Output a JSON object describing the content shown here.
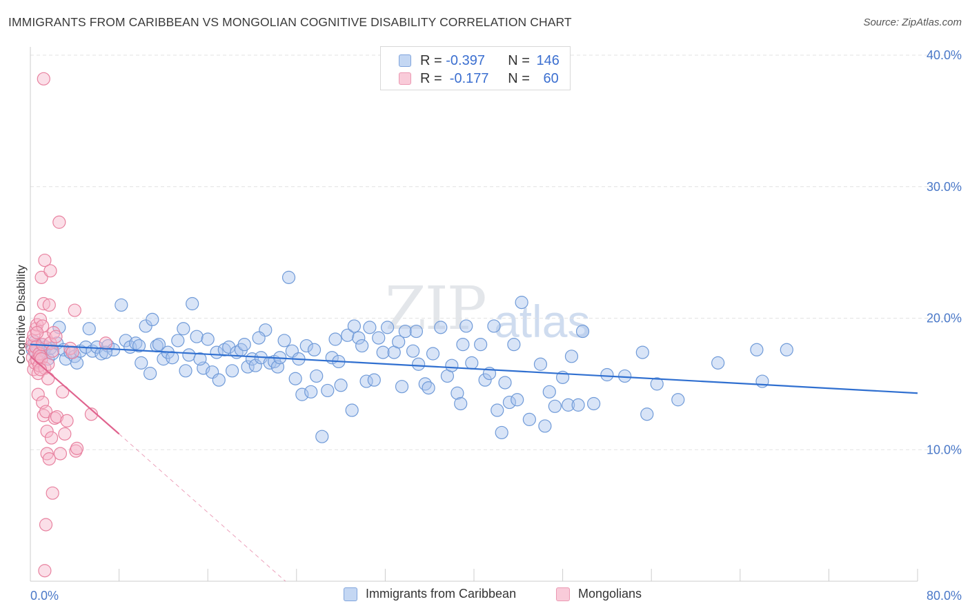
{
  "title": "IMMIGRANTS FROM CARIBBEAN VS MONGOLIAN COGNITIVE DISABILITY CORRELATION CHART",
  "source": "Source: ZipAtlas.com",
  "watermark": {
    "zip": "ZIP",
    "atlas": "atlas"
  },
  "legend": {
    "rows": [
      {
        "r_label": "R = ",
        "r_value": "-0.397",
        "n_label": "N = ",
        "n_value": "146",
        "color": "#a9c4ee"
      },
      {
        "r_label": "R = ",
        "r_value": " -0.177",
        "n_label": "N = ",
        "n_value": "60",
        "color": "#f7b9cc"
      }
    ]
  },
  "bottom_legend": {
    "series1": "Immigrants from Caribbean",
    "series2": "Mongolians"
  },
  "chart_data": {
    "type": "scatter",
    "title": "IMMIGRANTS FROM CARIBBEAN VS MONGOLIAN COGNITIVE DISABILITY CORRELATION CHART",
    "xlabel": "",
    "ylabel": "Cognitive Disability",
    "xlim": [
      0,
      80
    ],
    "ylim": [
      0,
      40
    ],
    "x_tick_labels": [
      "0.0%",
      "80.0%"
    ],
    "y_ticks": [
      10,
      20,
      30,
      40
    ],
    "y_tick_labels": [
      "10.0%",
      "20.0%",
      "30.0%",
      "40.0%"
    ],
    "grid": true,
    "colors": {
      "blue_fill": "#a9c4ee",
      "blue_stroke": "#6f9ad8",
      "blue_line": "#2f6fd0",
      "pink_fill": "#f7b9cc",
      "pink_stroke": "#e8819f",
      "pink_line": "#e0638e"
    },
    "series": [
      {
        "name": "Immigrants from Caribbean",
        "trend": {
          "x0": 0,
          "y0": 18.0,
          "x1": 80,
          "y1": 14.3
        },
        "points": [
          [
            0.2,
            17.6
          ],
          [
            0.4,
            18.2
          ],
          [
            0.5,
            17.4
          ],
          [
            0.6,
            17.9
          ],
          [
            0.8,
            17.2
          ],
          [
            1.0,
            18.0
          ],
          [
            1.2,
            17.5
          ],
          [
            1.4,
            17.8
          ],
          [
            1.6,
            16.9
          ],
          [
            1.8,
            17.7
          ],
          [
            2.0,
            17.3
          ],
          [
            2.4,
            18.1
          ],
          [
            2.6,
            19.3
          ],
          [
            3.0,
            17.6
          ],
          [
            3.2,
            16.9
          ],
          [
            3.6,
            17.4
          ],
          [
            4.0,
            17.1
          ],
          [
            4.2,
            16.6
          ],
          [
            4.5,
            17.5
          ],
          [
            5.0,
            17.8
          ],
          [
            5.3,
            19.2
          ],
          [
            5.6,
            17.5
          ],
          [
            6.0,
            17.8
          ],
          [
            6.4,
            17.3
          ],
          [
            7.0,
            17.9
          ],
          [
            7.5,
            17.6
          ],
          [
            8.2,
            21.0
          ],
          [
            8.6,
            18.3
          ],
          [
            9.0,
            17.8
          ],
          [
            9.5,
            18.1
          ],
          [
            10.0,
            16.6
          ],
          [
            10.4,
            19.4
          ],
          [
            10.8,
            15.8
          ],
          [
            11.0,
            19.9
          ],
          [
            11.4,
            17.9
          ],
          [
            11.6,
            18.0
          ],
          [
            12.0,
            16.9
          ],
          [
            12.4,
            17.4
          ],
          [
            12.8,
            17.0
          ],
          [
            13.3,
            18.3
          ],
          [
            13.8,
            19.2
          ],
          [
            14.0,
            16.0
          ],
          [
            14.3,
            17.2
          ],
          [
            14.6,
            21.1
          ],
          [
            15.0,
            18.6
          ],
          [
            15.6,
            16.2
          ],
          [
            16.0,
            18.4
          ],
          [
            16.4,
            15.9
          ],
          [
            16.8,
            17.4
          ],
          [
            17.0,
            15.3
          ],
          [
            17.5,
            17.6
          ],
          [
            17.9,
            17.8
          ],
          [
            18.2,
            16.0
          ],
          [
            18.6,
            17.4
          ],
          [
            19.0,
            17.6
          ],
          [
            19.3,
            18.0
          ],
          [
            19.6,
            16.3
          ],
          [
            20.0,
            16.9
          ],
          [
            20.3,
            16.4
          ],
          [
            20.8,
            17.0
          ],
          [
            21.2,
            19.1
          ],
          [
            21.6,
            16.6
          ],
          [
            22.0,
            16.7
          ],
          [
            22.3,
            16.3
          ],
          [
            22.5,
            17.0
          ],
          [
            22.9,
            18.3
          ],
          [
            23.3,
            23.1
          ],
          [
            23.6,
            17.5
          ],
          [
            23.9,
            15.4
          ],
          [
            24.2,
            16.9
          ],
          [
            24.5,
            14.2
          ],
          [
            24.9,
            17.9
          ],
          [
            25.3,
            14.4
          ],
          [
            25.6,
            17.6
          ],
          [
            25.8,
            15.6
          ],
          [
            26.3,
            11.0
          ],
          [
            26.8,
            14.5
          ],
          [
            27.2,
            17.0
          ],
          [
            27.5,
            18.4
          ],
          [
            27.8,
            16.7
          ],
          [
            28.0,
            14.9
          ],
          [
            28.6,
            18.7
          ],
          [
            29.0,
            13.0
          ],
          [
            29.2,
            19.4
          ],
          [
            29.6,
            18.5
          ],
          [
            29.9,
            17.9
          ],
          [
            30.3,
            15.2
          ],
          [
            30.6,
            19.3
          ],
          [
            31.0,
            15.3
          ],
          [
            31.4,
            18.5
          ],
          [
            31.8,
            17.4
          ],
          [
            32.2,
            19.3
          ],
          [
            32.8,
            17.4
          ],
          [
            33.2,
            18.2
          ],
          [
            33.5,
            14.8
          ],
          [
            33.8,
            19.0
          ],
          [
            34.5,
            17.5
          ],
          [
            34.8,
            19.0
          ],
          [
            35.0,
            16.5
          ],
          [
            35.6,
            15.0
          ],
          [
            35.9,
            14.7
          ],
          [
            36.3,
            17.3
          ],
          [
            37.0,
            19.3
          ],
          [
            37.6,
            15.6
          ],
          [
            38.0,
            16.4
          ],
          [
            38.5,
            14.3
          ],
          [
            38.8,
            13.5
          ],
          [
            39.0,
            18.0
          ],
          [
            39.3,
            19.4
          ],
          [
            39.8,
            16.6
          ],
          [
            40.6,
            18.0
          ],
          [
            41.0,
            15.3
          ],
          [
            41.4,
            15.8
          ],
          [
            41.8,
            19.4
          ],
          [
            42.1,
            13.0
          ],
          [
            42.5,
            11.3
          ],
          [
            42.8,
            15.1
          ],
          [
            43.2,
            13.6
          ],
          [
            43.6,
            18.0
          ],
          [
            43.9,
            13.8
          ],
          [
            44.3,
            21.2
          ],
          [
            45.0,
            12.3
          ],
          [
            46.0,
            16.5
          ],
          [
            46.4,
            11.8
          ],
          [
            46.8,
            14.4
          ],
          [
            47.3,
            13.3
          ],
          [
            48.0,
            15.5
          ],
          [
            48.5,
            13.4
          ],
          [
            48.8,
            17.1
          ],
          [
            49.8,
            19.0
          ],
          [
            49.4,
            13.4
          ],
          [
            50.8,
            13.5
          ],
          [
            52.0,
            15.7
          ],
          [
            53.6,
            15.6
          ],
          [
            55.2,
            17.4
          ],
          [
            55.6,
            12.7
          ],
          [
            56.5,
            15.0
          ],
          [
            58.4,
            13.8
          ],
          [
            62.0,
            16.6
          ],
          [
            65.5,
            17.6
          ],
          [
            66.0,
            15.2
          ],
          [
            68.2,
            17.6
          ],
          [
            6.8,
            17.4
          ],
          [
            9.8,
            17.9
          ],
          [
            15.3,
            16.9
          ],
          [
            20.6,
            18.5
          ]
        ]
      },
      {
        "name": "Mongolians",
        "trend": {
          "x0": 0,
          "y0": 17.1,
          "x1": 8.0,
          "y1": 11.2,
          "dash_x1": 23.0,
          "dash_y1": 0.0
        },
        "points": [
          [
            0.1,
            17.9
          ],
          [
            0.2,
            18.3
          ],
          [
            0.2,
            17.0
          ],
          [
            0.3,
            16.1
          ],
          [
            0.3,
            18.7
          ],
          [
            0.4,
            16.6
          ],
          [
            0.4,
            17.5
          ],
          [
            0.5,
            17.8
          ],
          [
            0.5,
            19.2
          ],
          [
            0.6,
            16.8
          ],
          [
            0.6,
            19.5
          ],
          [
            0.7,
            14.2
          ],
          [
            0.7,
            15.8
          ],
          [
            0.8,
            16.4
          ],
          [
            0.8,
            17.3
          ],
          [
            0.9,
            17.1
          ],
          [
            0.9,
            19.9
          ],
          [
            1.0,
            23.1
          ],
          [
            1.0,
            16.9
          ],
          [
            1.1,
            18.0
          ],
          [
            1.1,
            13.6
          ],
          [
            1.2,
            12.6
          ],
          [
            1.2,
            21.1
          ],
          [
            1.2,
            38.2
          ],
          [
            1.3,
            24.4
          ],
          [
            1.3,
            16.2
          ],
          [
            1.4,
            18.5
          ],
          [
            1.4,
            12.9
          ],
          [
            1.5,
            11.4
          ],
          [
            1.5,
            9.7
          ],
          [
            1.6,
            16.5
          ],
          [
            1.6,
            15.4
          ],
          [
            1.7,
            9.3
          ],
          [
            1.7,
            21.0
          ],
          [
            1.8,
            23.6
          ],
          [
            1.8,
            18.1
          ],
          [
            1.9,
            10.9
          ],
          [
            2.0,
            6.7
          ],
          [
            2.0,
            17.5
          ],
          [
            2.1,
            18.9
          ],
          [
            2.2,
            12.4
          ],
          [
            2.4,
            12.5
          ],
          [
            2.6,
            27.3
          ],
          [
            2.7,
            9.7
          ],
          [
            2.9,
            14.4
          ],
          [
            3.1,
            11.2
          ],
          [
            3.3,
            12.2
          ],
          [
            3.6,
            17.7
          ],
          [
            3.8,
            17.4
          ],
          [
            4.0,
            20.6
          ],
          [
            4.1,
            9.9
          ],
          [
            4.2,
            10.1
          ],
          [
            5.5,
            12.7
          ],
          [
            6.8,
            18.1
          ],
          [
            1.4,
            4.3
          ],
          [
            1.3,
            0.8
          ],
          [
            1.1,
            19.4
          ],
          [
            0.9,
            16.1
          ],
          [
            0.6,
            18.9
          ],
          [
            2.3,
            18.6
          ]
        ]
      }
    ]
  }
}
